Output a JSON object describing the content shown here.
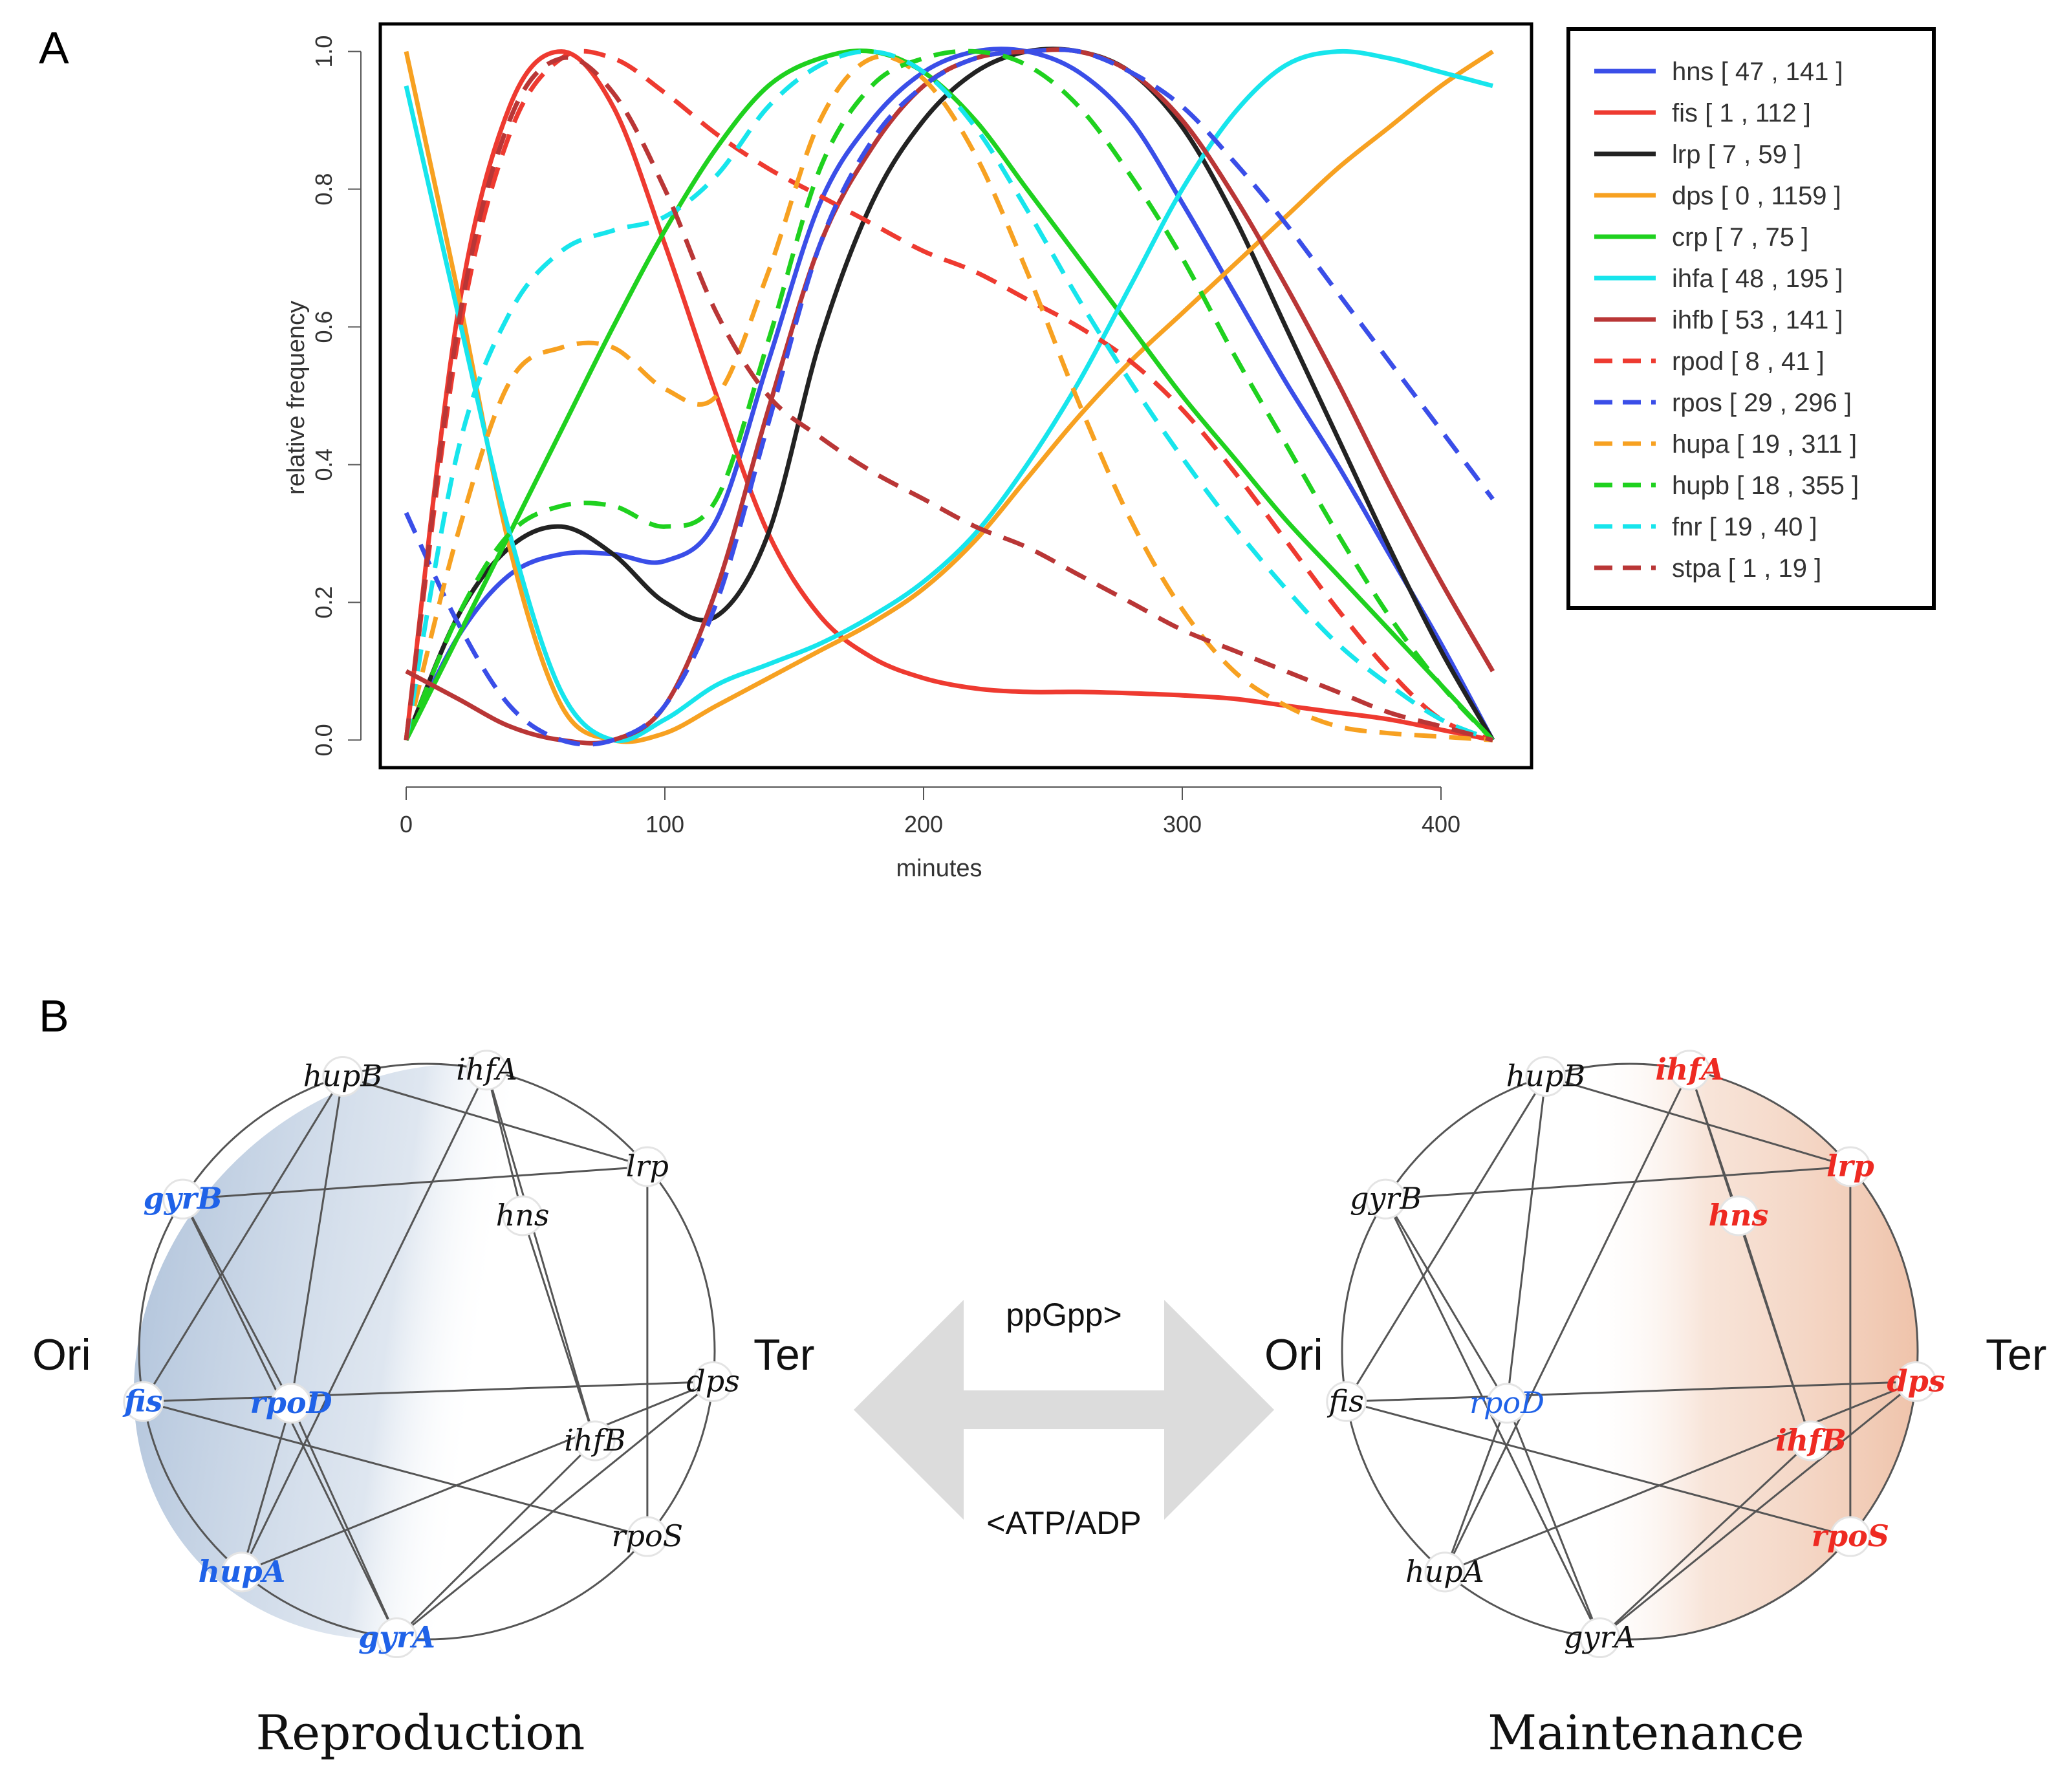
{
  "panel_a_label": "A",
  "panel_b_label": "B",
  "chart_data": {
    "type": "line",
    "xlabel": "minutes",
    "ylabel": "relative frequency",
    "xlim": [
      -10,
      435
    ],
    "ylim": [
      -0.04,
      1.04
    ],
    "xticks": [
      "0",
      "100",
      "200",
      "300",
      "400"
    ],
    "yticks": [
      "0.0",
      "0.2",
      "0.4",
      "0.6",
      "0.8",
      "1.0"
    ],
    "x": [
      0,
      20,
      40,
      60,
      80,
      100,
      120,
      140,
      160,
      180,
      200,
      220,
      240,
      260,
      280,
      300,
      320,
      340,
      360,
      380,
      400,
      420
    ],
    "series": [
      {
        "name": "hns",
        "label": "hns [ 47 , 141 ]",
        "color": "#3a4ee8",
        "dash": false,
        "values": [
          0.0,
          0.15,
          0.24,
          0.27,
          0.27,
          0.26,
          0.32,
          0.55,
          0.78,
          0.9,
          0.97,
          1.0,
          1.0,
          0.97,
          0.9,
          0.78,
          0.65,
          0.52,
          0.4,
          0.27,
          0.14,
          0.0
        ]
      },
      {
        "name": "fis",
        "label": "fis [ 1 , 112 ]",
        "color": "#ee3a30",
        "dash": false,
        "values": [
          0.0,
          0.62,
          0.92,
          1.0,
          0.92,
          0.72,
          0.5,
          0.3,
          0.18,
          0.12,
          0.09,
          0.075,
          0.07,
          0.07,
          0.068,
          0.065,
          0.06,
          0.05,
          0.04,
          0.03,
          0.015,
          0.0
        ]
      },
      {
        "name": "lrp",
        "label": "lrp [ 7 , 59 ]",
        "color": "#222222",
        "dash": false,
        "values": [
          0.0,
          0.18,
          0.28,
          0.31,
          0.27,
          0.2,
          0.18,
          0.3,
          0.58,
          0.78,
          0.9,
          0.97,
          1.0,
          1.0,
          0.97,
          0.89,
          0.76,
          0.6,
          0.44,
          0.28,
          0.13,
          0.0
        ]
      },
      {
        "name": "dps",
        "label": "dps [ 0 , 1159 ]",
        "color": "#f7a121",
        "dash": false,
        "values": [
          1.0,
          0.65,
          0.28,
          0.05,
          0.0,
          0.01,
          0.05,
          0.09,
          0.13,
          0.17,
          0.22,
          0.29,
          0.38,
          0.47,
          0.55,
          0.62,
          0.69,
          0.76,
          0.83,
          0.89,
          0.95,
          1.0
        ]
      },
      {
        "name": "crp",
        "label": "crp [ 7 , 75 ]",
        "color": "#1fd11f",
        "dash": false,
        "values": [
          0.0,
          0.15,
          0.3,
          0.45,
          0.6,
          0.74,
          0.86,
          0.95,
          0.99,
          1.0,
          0.97,
          0.9,
          0.8,
          0.7,
          0.6,
          0.5,
          0.41,
          0.32,
          0.24,
          0.16,
          0.08,
          0.0
        ]
      },
      {
        "name": "ihfa",
        "label": "ihfa [ 48 , 195 ]",
        "color": "#17e5ec",
        "dash": false,
        "values": [
          0.95,
          0.62,
          0.3,
          0.07,
          0.0,
          0.03,
          0.08,
          0.11,
          0.14,
          0.18,
          0.23,
          0.3,
          0.4,
          0.52,
          0.66,
          0.8,
          0.91,
          0.98,
          1.0,
          0.99,
          0.97,
          0.95
        ]
      },
      {
        "name": "ihfb",
        "label": "ihfb [ 53 , 141 ]",
        "color": "#b93636",
        "dash": false,
        "values": [
          0.1,
          0.06,
          0.02,
          0.0,
          0.0,
          0.05,
          0.22,
          0.48,
          0.72,
          0.86,
          0.95,
          0.99,
          1.0,
          1.0,
          0.97,
          0.9,
          0.79,
          0.66,
          0.52,
          0.37,
          0.23,
          0.1
        ]
      },
      {
        "name": "rpod",
        "label": "rpod [ 8 , 41 ]",
        "color": "#ee3a30",
        "dash": true,
        "values": [
          0.0,
          0.58,
          0.88,
          0.99,
          0.99,
          0.94,
          0.88,
          0.83,
          0.79,
          0.75,
          0.71,
          0.68,
          0.64,
          0.6,
          0.55,
          0.48,
          0.39,
          0.29,
          0.19,
          0.1,
          0.03,
          0.0
        ]
      },
      {
        "name": "rpos",
        "label": "rpos [ 29 , 296 ]",
        "color": "#3a4ee8",
        "dash": true,
        "values": [
          0.33,
          0.17,
          0.05,
          0.0,
          0.0,
          0.05,
          0.2,
          0.46,
          0.72,
          0.87,
          0.95,
          0.99,
          1.0,
          1.0,
          0.97,
          0.92,
          0.84,
          0.75,
          0.65,
          0.55,
          0.45,
          0.35
        ]
      },
      {
        "name": "hupa",
        "label": "hupa [ 19 , 311 ]",
        "color": "#f7a121",
        "dash": true,
        "values": [
          0.0,
          0.3,
          0.52,
          0.57,
          0.57,
          0.51,
          0.5,
          0.68,
          0.9,
          0.99,
          0.96,
          0.85,
          0.68,
          0.49,
          0.32,
          0.19,
          0.1,
          0.05,
          0.02,
          0.01,
          0.005,
          0.0
        ]
      },
      {
        "name": "hupb",
        "label": "hupb [ 18 , 355 ]",
        "color": "#1fd11f",
        "dash": true,
        "values": [
          0.0,
          0.18,
          0.3,
          0.34,
          0.34,
          0.31,
          0.35,
          0.58,
          0.83,
          0.95,
          0.99,
          1.0,
          0.98,
          0.92,
          0.82,
          0.7,
          0.56,
          0.43,
          0.3,
          0.18,
          0.08,
          0.0
        ]
      },
      {
        "name": "fnr",
        "label": "fnr [ 19 , 40 ]",
        "color": "#17e5ec",
        "dash": true,
        "values": [
          0.0,
          0.42,
          0.62,
          0.71,
          0.74,
          0.76,
          0.82,
          0.92,
          0.98,
          1.0,
          0.97,
          0.89,
          0.77,
          0.64,
          0.52,
          0.41,
          0.31,
          0.22,
          0.14,
          0.08,
          0.03,
          0.0
        ]
      },
      {
        "name": "stpa",
        "label": "stpa [ 1 , 19 ]",
        "color": "#b93636",
        "dash": true,
        "values": [
          0.0,
          0.6,
          0.9,
          0.99,
          0.94,
          0.8,
          0.62,
          0.5,
          0.44,
          0.39,
          0.35,
          0.31,
          0.28,
          0.24,
          0.2,
          0.16,
          0.13,
          0.1,
          0.07,
          0.04,
          0.02,
          0.0
        ]
      }
    ]
  },
  "network": {
    "left": {
      "caption": "Reproduction",
      "ori": "Ori",
      "ter": "Ter",
      "nodes": [
        {
          "id": "hupB",
          "label": "hupB",
          "color": "#111111",
          "bold": false
        },
        {
          "id": "ihfA",
          "label": "ihfA",
          "color": "#111111",
          "bold": false
        },
        {
          "id": "lrp",
          "label": "lrp",
          "color": "#111111",
          "bold": false
        },
        {
          "id": "hns",
          "label": "hns",
          "color": "#111111",
          "bold": false
        },
        {
          "id": "gyrB",
          "label": "gyrB",
          "color": "#1f62e8",
          "bold": true
        },
        {
          "id": "rpoD",
          "label": "rpoD",
          "color": "#1f62e8",
          "bold": true
        },
        {
          "id": "fis",
          "label": "fis",
          "color": "#1f62e8",
          "bold": true
        },
        {
          "id": "dps",
          "label": "dps",
          "color": "#111111",
          "bold": false
        },
        {
          "id": "ihfB",
          "label": "ihfB",
          "color": "#111111",
          "bold": false
        },
        {
          "id": "rpoS",
          "label": "rpoS",
          "color": "#111111",
          "bold": false
        },
        {
          "id": "hupA",
          "label": "hupA",
          "color": "#1f62e8",
          "bold": true
        },
        {
          "id": "gyrA",
          "label": "gyrA",
          "color": "#1f62e8",
          "bold": true
        }
      ]
    },
    "right": {
      "caption": "Maintenance",
      "ori": "Ori",
      "ter": "Ter",
      "nodes": [
        {
          "id": "hupB",
          "label": "hupB",
          "color": "#111111",
          "bold": false
        },
        {
          "id": "ihfA",
          "label": "ihfA",
          "color": "#ee2a22",
          "bold": true
        },
        {
          "id": "lrp",
          "label": "lrp",
          "color": "#ee2a22",
          "bold": true
        },
        {
          "id": "hns",
          "label": "hns",
          "color": "#ee2a22",
          "bold": true
        },
        {
          "id": "gyrB",
          "label": "gyrB",
          "color": "#111111",
          "bold": false
        },
        {
          "id": "rpoD",
          "label": "rpoD",
          "color": "#1f62e8",
          "bold": false
        },
        {
          "id": "fis",
          "label": "fis",
          "color": "#111111",
          "bold": false
        },
        {
          "id": "dps",
          "label": "dps",
          "color": "#ee2a22",
          "bold": true
        },
        {
          "id": "ihfB",
          "label": "ihfB",
          "color": "#ee2a22",
          "bold": true
        },
        {
          "id": "rpoS",
          "label": "rpoS",
          "color": "#ee2a22",
          "bold": true
        },
        {
          "id": "hupA",
          "label": "hupA",
          "color": "#111111",
          "bold": false
        },
        {
          "id": "gyrA",
          "label": "gyrA",
          "color": "#111111",
          "bold": false
        }
      ]
    },
    "edges": [
      [
        "hupB",
        "rpoD"
      ],
      [
        "hupB",
        "lrp"
      ],
      [
        "hupB",
        "fis"
      ],
      [
        "ihfA",
        "hns"
      ],
      [
        "ihfA",
        "ihfB"
      ],
      [
        "ihfA",
        "hupA"
      ],
      [
        "lrp",
        "gyrB"
      ],
      [
        "lrp",
        "rpoS"
      ],
      [
        "hns",
        "ihfB"
      ],
      [
        "gyrB",
        "rpoD"
      ],
      [
        "gyrB",
        "gyrA"
      ],
      [
        "fis",
        "rpoS"
      ],
      [
        "fis",
        "dps"
      ],
      [
        "rpoD",
        "hupA"
      ],
      [
        "rpoD",
        "gyrA"
      ],
      [
        "dps",
        "hupA"
      ],
      [
        "dps",
        "gyrA"
      ],
      [
        "ihfB",
        "gyrA"
      ]
    ]
  },
  "arrow": {
    "top_label": "ppGpp>",
    "bottom_label": "<ATP/ADP"
  }
}
